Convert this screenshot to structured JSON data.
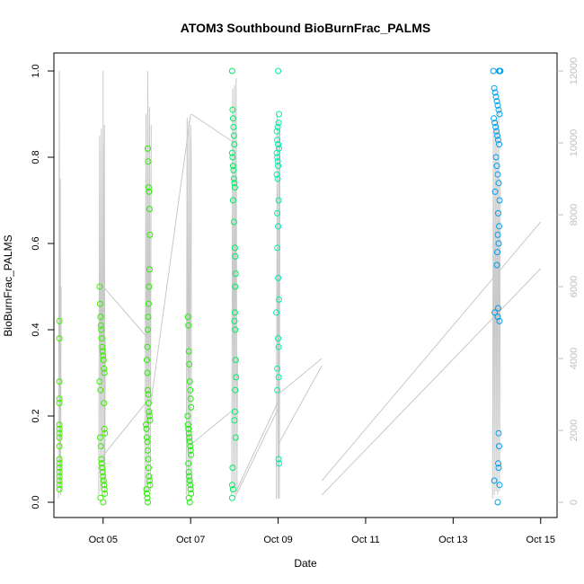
{
  "chart_data": {
    "type": "scatter",
    "title": "ATOM3 Southbound BioBurnFrac_PALMS",
    "xlabel": "Date",
    "ylabel": "BioBurnFrac_PALMS",
    "x_axis_type": "date",
    "xlim": [
      "2016-10-03T21:00",
      "2016-10-15T09:00"
    ],
    "x_ticks": [
      {
        "value": "2016-10-05",
        "label": "Oct 05"
      },
      {
        "value": "2016-10-07",
        "label": "Oct 07"
      },
      {
        "value": "2016-10-09",
        "label": "Oct 09"
      },
      {
        "value": "2016-10-11",
        "label": "Oct 11"
      },
      {
        "value": "2016-10-13",
        "label": "Oct 13"
      },
      {
        "value": "2016-10-15",
        "label": "Oct 15"
      }
    ],
    "ylim": [
      0,
      1
    ],
    "y_ticks": [
      "0.0",
      "0.2",
      "0.4",
      "0.6",
      "0.8",
      "1.0"
    ],
    "y2lim": [
      0,
      12000
    ],
    "y2_ticks": [
      "0",
      "2000",
      "4000",
      "6000",
      "8000",
      "10000",
      "12000"
    ],
    "grid": false,
    "legend": "none",
    "marker": "open-circle",
    "secondary_series_color": "#c8c8c8",
    "groups": [
      {
        "date": "2016-10-04",
        "color": "#44ee00",
        "points": [
          [
            0.0,
            0.42
          ],
          [
            0.0,
            0.38
          ],
          [
            0.0,
            0.28
          ],
          [
            0.0,
            0.24
          ],
          [
            0.0,
            0.23
          ],
          [
            0.0,
            0.18
          ],
          [
            0.0,
            0.17
          ],
          [
            0.0,
            0.16
          ],
          [
            0.0,
            0.15
          ],
          [
            0.0,
            0.13
          ],
          [
            0.0,
            0.1
          ],
          [
            0.0,
            0.09
          ],
          [
            0.0,
            0.08
          ],
          [
            0.0,
            0.07
          ],
          [
            0.0,
            0.06
          ],
          [
            0.0,
            0.05
          ],
          [
            0.0,
            0.04
          ],
          [
            0.0,
            0.03
          ]
        ],
        "altitude": [
          [
            -0.02,
            100
          ],
          [
            0.0,
            12000
          ],
          [
            0.01,
            400
          ],
          [
            0.02,
            9000
          ],
          [
            0.03,
            200
          ],
          [
            0.04,
            6000
          ]
        ]
      },
      {
        "date": "2016-10-05",
        "color": "#39ee00",
        "points": [
          [
            -0.08,
            0.5
          ],
          [
            -0.07,
            0.46
          ],
          [
            -0.06,
            0.43
          ],
          [
            -0.05,
            0.41
          ],
          [
            -0.04,
            0.4
          ],
          [
            -0.03,
            0.38
          ],
          [
            -0.02,
            0.36
          ],
          [
            -0.01,
            0.35
          ],
          [
            0.0,
            0.34
          ],
          [
            0.01,
            0.33
          ],
          [
            0.02,
            0.31
          ],
          [
            0.03,
            0.3
          ],
          [
            -0.08,
            0.28
          ],
          [
            -0.06,
            0.26
          ],
          [
            0.02,
            0.23
          ],
          [
            0.03,
            0.17
          ],
          [
            0.04,
            0.16
          ],
          [
            -0.07,
            0.15
          ],
          [
            -0.05,
            0.13
          ],
          [
            -0.04,
            0.1
          ],
          [
            -0.03,
            0.09
          ],
          [
            -0.02,
            0.08
          ],
          [
            -0.01,
            0.07
          ],
          [
            0.0,
            0.06
          ],
          [
            0.01,
            0.05
          ],
          [
            0.02,
            0.04
          ],
          [
            0.03,
            0.03
          ],
          [
            0.04,
            0.02
          ],
          [
            -0.06,
            0.01
          ],
          [
            0.0,
            0.0
          ]
        ],
        "altitude": [
          [
            -0.1,
            200
          ],
          [
            -0.08,
            10200
          ],
          [
            -0.06,
            300
          ],
          [
            -0.04,
            10400
          ],
          [
            -0.02,
            400
          ],
          [
            0.0,
            10000
          ],
          [
            0.02,
            500
          ],
          [
            0.03,
            10500
          ],
          [
            0.04,
            200
          ],
          [
            0.05,
            4600
          ]
        ]
      },
      {
        "date": "2016-10-06",
        "color": "#2aee00",
        "points": [
          [
            0.02,
            0.82
          ],
          [
            0.03,
            0.79
          ],
          [
            0.04,
            0.73
          ],
          [
            0.05,
            0.72
          ],
          [
            0.06,
            0.68
          ],
          [
            0.07,
            0.62
          ],
          [
            0.06,
            0.54
          ],
          [
            0.05,
            0.5
          ],
          [
            0.04,
            0.46
          ],
          [
            0.03,
            0.43
          ],
          [
            0.02,
            0.4
          ],
          [
            0.01,
            0.36
          ],
          [
            0.0,
            0.33
          ],
          [
            0.01,
            0.3
          ],
          [
            0.02,
            0.26
          ],
          [
            0.03,
            0.25
          ],
          [
            0.04,
            0.23
          ],
          [
            0.05,
            0.21
          ],
          [
            0.06,
            0.2
          ],
          [
            0.07,
            0.19
          ],
          [
            -0.02,
            0.18
          ],
          [
            -0.01,
            0.17
          ],
          [
            0.0,
            0.15
          ],
          [
            0.01,
            0.14
          ],
          [
            0.02,
            0.12
          ],
          [
            0.03,
            0.1
          ],
          [
            0.04,
            0.08
          ],
          [
            0.05,
            0.06
          ],
          [
            0.06,
            0.05
          ],
          [
            0.07,
            0.04
          ],
          [
            -0.01,
            0.03
          ],
          [
            0.0,
            0.02
          ],
          [
            0.01,
            0.01
          ],
          [
            0.02,
            0.0
          ]
        ],
        "altitude": [
          [
            -0.04,
            200
          ],
          [
            -0.02,
            10800
          ],
          [
            0.0,
            300
          ],
          [
            0.02,
            12000
          ],
          [
            0.04,
            500
          ],
          [
            0.06,
            11000
          ],
          [
            0.08,
            300
          ],
          [
            0.1,
            10500
          ]
        ]
      },
      {
        "date": "2016-10-07",
        "color": "#22ee11",
        "points": [
          [
            -0.06,
            0.43
          ],
          [
            -0.05,
            0.41
          ],
          [
            -0.04,
            0.35
          ],
          [
            -0.03,
            0.32
          ],
          [
            -0.02,
            0.28
          ],
          [
            -0.01,
            0.26
          ],
          [
            0.0,
            0.24
          ],
          [
            0.01,
            0.22
          ],
          [
            -0.07,
            0.2
          ],
          [
            -0.06,
            0.18
          ],
          [
            -0.05,
            0.17
          ],
          [
            -0.04,
            0.16
          ],
          [
            -0.03,
            0.15
          ],
          [
            -0.02,
            0.14
          ],
          [
            -0.01,
            0.13
          ],
          [
            0.0,
            0.12
          ],
          [
            0.01,
            0.11
          ],
          [
            -0.05,
            0.09
          ],
          [
            -0.04,
            0.07
          ],
          [
            -0.03,
            0.06
          ],
          [
            -0.02,
            0.05
          ],
          [
            -0.01,
            0.04
          ],
          [
            0.0,
            0.03
          ],
          [
            0.01,
            0.02
          ],
          [
            -0.04,
            0.01
          ],
          [
            -0.02,
            0.0
          ]
        ],
        "altitude": [
          [
            -0.1,
            200
          ],
          [
            -0.08,
            10700
          ],
          [
            -0.06,
            300
          ],
          [
            -0.04,
            10600
          ],
          [
            -0.02,
            400
          ],
          [
            0.0,
            10500
          ],
          [
            0.01,
            9800
          ],
          [
            0.02,
            300
          ]
        ]
      },
      {
        "date": "2016-10-08",
        "color": "#00ee66",
        "points": [
          [
            -0.05,
            1.0
          ],
          [
            -0.04,
            0.91
          ],
          [
            -0.03,
            0.89
          ],
          [
            -0.02,
            0.87
          ],
          [
            -0.01,
            0.85
          ],
          [
            0.0,
            0.83
          ],
          [
            -0.05,
            0.81
          ],
          [
            -0.04,
            0.8
          ],
          [
            -0.03,
            0.78
          ],
          [
            -0.02,
            0.77
          ],
          [
            -0.01,
            0.75
          ],
          [
            0.0,
            0.74
          ],
          [
            0.01,
            0.73
          ],
          [
            -0.03,
            0.7
          ],
          [
            -0.01,
            0.65
          ],
          [
            0.01,
            0.59
          ],
          [
            0.02,
            0.57
          ],
          [
            0.03,
            0.53
          ],
          [
            0.02,
            0.5
          ],
          [
            0.01,
            0.44
          ],
          [
            0.0,
            0.42
          ],
          [
            0.02,
            0.4
          ],
          [
            0.03,
            0.33
          ],
          [
            0.04,
            0.29
          ],
          [
            0.02,
            0.26
          ],
          [
            0.01,
            0.21
          ],
          [
            0.0,
            0.19
          ],
          [
            0.03,
            0.15
          ],
          [
            -0.04,
            0.08
          ],
          [
            -0.05,
            0.04
          ],
          [
            -0.03,
            0.03
          ],
          [
            -0.05,
            0.01
          ]
        ],
        "altitude": [
          [
            -0.06,
            200
          ],
          [
            -0.04,
            11500
          ],
          [
            -0.02,
            300
          ],
          [
            0.0,
            11600
          ],
          [
            0.02,
            400
          ],
          [
            0.04,
            11800
          ],
          [
            0.06,
            300
          ],
          [
            0.07,
            4000
          ]
        ]
      },
      {
        "date": "2016-10-09",
        "color": "#00eeaa",
        "points": [
          [
            0.0,
            1.0
          ],
          [
            0.02,
            0.9
          ],
          [
            0.01,
            0.88
          ],
          [
            -0.01,
            0.87
          ],
          [
            -0.03,
            0.86
          ],
          [
            -0.02,
            0.84
          ],
          [
            0.0,
            0.83
          ],
          [
            0.02,
            0.82
          ],
          [
            -0.03,
            0.81
          ],
          [
            -0.02,
            0.8
          ],
          [
            -0.01,
            0.79
          ],
          [
            0.0,
            0.78
          ],
          [
            -0.03,
            0.76
          ],
          [
            -0.01,
            0.75
          ],
          [
            0.01,
            0.7
          ],
          [
            -0.02,
            0.67
          ],
          [
            0.0,
            0.64
          ],
          [
            -0.02,
            0.59
          ],
          [
            0.0,
            0.52
          ],
          [
            0.02,
            0.47
          ],
          [
            -0.04,
            0.44
          ],
          [
            0.0,
            0.38
          ],
          [
            0.01,
            0.36
          ],
          [
            -0.02,
            0.31
          ],
          [
            0.01,
            0.29
          ],
          [
            -0.02,
            0.26
          ],
          [
            0.01,
            0.1
          ],
          [
            0.02,
            0.09
          ]
        ],
        "altitude": [
          [
            -0.04,
            100
          ],
          [
            -0.02,
            10800
          ],
          [
            0.0,
            100
          ],
          [
            0.02,
            10600
          ],
          [
            0.03,
            100
          ],
          [
            0.04,
            10400
          ]
        ]
      },
      {
        "date": "2016-10-14",
        "color": "#00a0ee",
        "points": [
          [
            -0.08,
            1.0
          ],
          [
            0.05,
            1.0
          ],
          [
            0.06,
            1.0
          ],
          [
            0.08,
            1.0
          ],
          [
            -0.06,
            0.96
          ],
          [
            -0.04,
            0.95
          ],
          [
            -0.02,
            0.94
          ],
          [
            0.0,
            0.93
          ],
          [
            0.02,
            0.92
          ],
          [
            0.04,
            0.91
          ],
          [
            0.06,
            0.9
          ],
          [
            -0.07,
            0.89
          ],
          [
            -0.05,
            0.88
          ],
          [
            -0.03,
            0.87
          ],
          [
            -0.01,
            0.86
          ],
          [
            0.01,
            0.85
          ],
          [
            0.03,
            0.84
          ],
          [
            0.05,
            0.83
          ],
          [
            -0.02,
            0.8
          ],
          [
            0.0,
            0.78
          ],
          [
            0.02,
            0.76
          ],
          [
            0.04,
            0.74
          ],
          [
            -0.04,
            0.72
          ],
          [
            0.06,
            0.7
          ],
          [
            0.03,
            0.67
          ],
          [
            0.05,
            0.64
          ],
          [
            0.02,
            0.62
          ],
          [
            0.04,
            0.6
          ],
          [
            0.01,
            0.58
          ],
          [
            0.0,
            0.55
          ],
          [
            0.03,
            0.45
          ],
          [
            -0.05,
            0.44
          ],
          [
            0.02,
            0.43
          ],
          [
            0.06,
            0.42
          ],
          [
            0.04,
            0.16
          ],
          [
            0.05,
            0.13
          ],
          [
            0.03,
            0.09
          ],
          [
            0.04,
            0.08
          ],
          [
            -0.06,
            0.05
          ],
          [
            0.06,
            0.04
          ],
          [
            0.02,
            0.0
          ]
        ],
        "altitude": [
          [
            -0.1,
            100
          ],
          [
            -0.08,
            10300
          ],
          [
            -0.06,
            200
          ],
          [
            -0.04,
            10500
          ],
          [
            -0.02,
            300
          ],
          [
            0.0,
            10600
          ],
          [
            0.02,
            200
          ],
          [
            0.04,
            11000
          ],
          [
            0.06,
            300
          ],
          [
            0.08,
            9000
          ]
        ]
      }
    ],
    "connectors": [
      [
        [
          0.0,
          6000
        ],
        [
          0.0,
          12000
        ]
      ],
      [
        [
          0.0,
          6000
        ],
        [
          1.0,
          4600
        ]
      ],
      [
        [
          0.0,
          1300
        ],
        [
          1.0,
          2800
        ]
      ],
      [
        [
          1.05,
          2400
        ],
        [
          2.0,
          10800
        ]
      ],
      [
        [
          2.02,
          10800
        ],
        [
          3.0,
          10000
        ]
      ],
      [
        [
          2.0,
          1600
        ],
        [
          3.0,
          2600
        ]
      ],
      [
        [
          3.0,
          200
        ],
        [
          4.0,
          2800
        ]
      ],
      [
        [
          3.0,
          100
        ],
        [
          4.0,
          2600
        ]
      ],
      [
        [
          4.0,
          3000
        ],
        [
          5.0,
          4000
        ]
      ],
      [
        [
          4.0,
          1600
        ],
        [
          5.0,
          3800
        ]
      ],
      [
        [
          5.0,
          600
        ],
        [
          10.0,
          7800
        ]
      ],
      [
        [
          5.0,
          200
        ],
        [
          10.0,
          6500
        ]
      ]
    ]
  }
}
